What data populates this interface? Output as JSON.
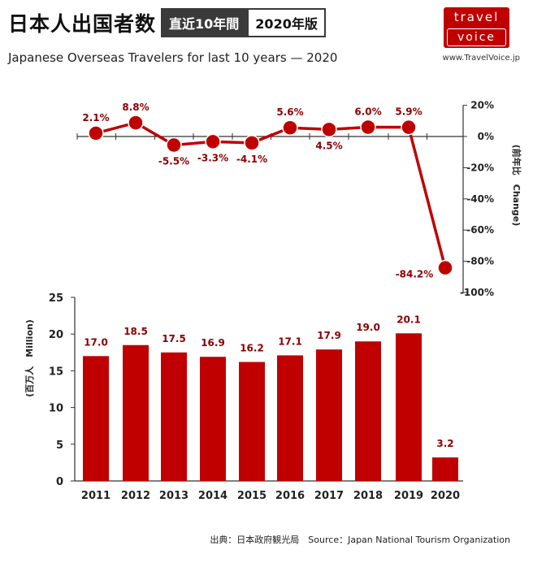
{
  "header": {
    "title": "日本人出国者数",
    "tag_period": "直近10年間",
    "tag_edition": "2020年版",
    "subtitle": "Japanese Overseas Travelers for last 10 years — 2020",
    "logo_line1": "travel",
    "logo_line2": "voice",
    "site": "www.TravelVoice.jp",
    "source": "出典：日本政府観光局　Source：Japan  National Tourism   Organization"
  },
  "colors": {
    "accent": "#c00000",
    "label": "#8b0000",
    "axis": "#333333"
  },
  "chart_data": [
    {
      "type": "line",
      "categories": [
        "2011",
        "2012",
        "2013",
        "2014",
        "2015",
        "2016",
        "2017",
        "2018",
        "2019",
        "2020"
      ],
      "values": [
        2.1,
        8.8,
        -5.5,
        -3.3,
        -4.1,
        5.6,
        4.5,
        6.0,
        5.9,
        -84.2
      ],
      "value_labels": [
        "2.1%",
        "8.8%",
        "-5.5%",
        "-3.3%",
        "-4.1%",
        "5.6%",
        "4.5%",
        "6.0%",
        "5.9%",
        "-84.2%"
      ],
      "ylabel": "(前年比　Change)",
      "ylim": [
        -100,
        20
      ],
      "yticks": [
        20,
        0,
        -20,
        -40,
        -60,
        -80,
        -100
      ],
      "ytick_labels": [
        "20%",
        "0%",
        "-20%",
        "-40%",
        "-60%",
        "-80%",
        "-100%"
      ],
      "axis_side": "right"
    },
    {
      "type": "bar",
      "categories": [
        "2011",
        "2012",
        "2013",
        "2014",
        "2015",
        "2016",
        "2017",
        "2018",
        "2019",
        "2020"
      ],
      "values": [
        17.0,
        18.5,
        17.5,
        16.9,
        16.2,
        17.1,
        17.9,
        19.0,
        20.1,
        3.2
      ],
      "value_labels": [
        "17.0",
        "18.5",
        "17.5",
        "16.9",
        "16.2",
        "17.1",
        "17.9",
        "19.0",
        "20.1",
        "3.2"
      ],
      "ylabel": "(百万人　Million)",
      "ylim": [
        0,
        25
      ],
      "yticks": [
        0,
        5,
        10,
        15,
        20,
        25
      ],
      "ytick_labels": [
        "0",
        "5",
        "10",
        "15",
        "20",
        "25"
      ],
      "axis_side": "left"
    }
  ]
}
